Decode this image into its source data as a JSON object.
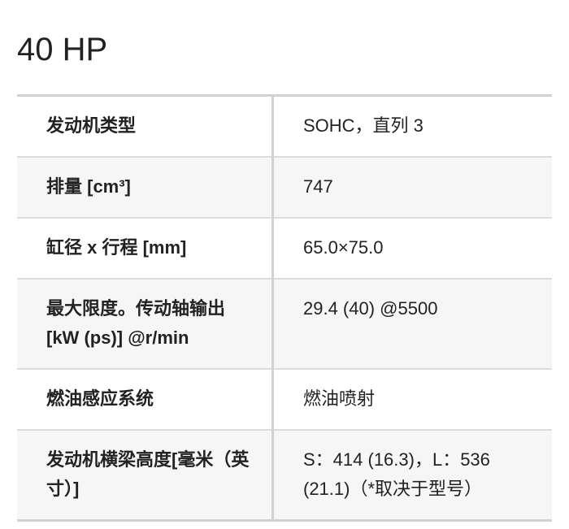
{
  "title": "40 HP",
  "rows": [
    {
      "label": "发动机类型",
      "value": "SOHC，直列 3"
    },
    {
      "label": "排量 [cm³]",
      "value": "747"
    },
    {
      "label": "缸径 x 行程 [mm]",
      "value": "65.0×75.0"
    },
    {
      "label": "最大限度。传动轴输出 [kW (ps)] @r/min",
      "value": "29.4 (40) @5500"
    },
    {
      "label": "燃油感应系统",
      "value": "燃油喷射"
    },
    {
      "label": "发动机横梁高度[毫米（英寸）]",
      "value": "S：414 (16.3)，L：536 (21.1)（*取决于型号）"
    }
  ]
}
